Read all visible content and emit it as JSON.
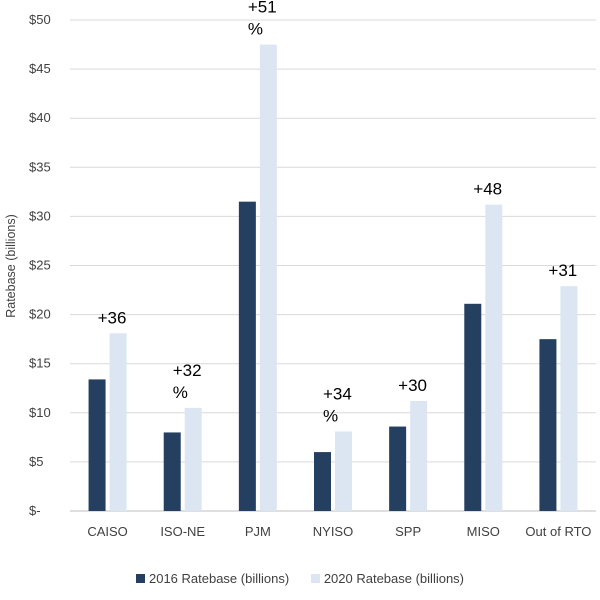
{
  "chart_data": {
    "type": "bar",
    "title": "",
    "xlabel": "",
    "ylabel": "Ratebase (billions)",
    "ylim": [
      0,
      50
    ],
    "yticks": [
      0,
      5,
      10,
      15,
      20,
      25,
      30,
      35,
      40,
      45,
      50
    ],
    "ytick_labels": [
      "$-",
      "$5",
      "$10",
      "$15",
      "$20",
      "$25",
      "$30",
      "$35",
      "$40",
      "$45",
      "$50"
    ],
    "grid": true,
    "legend_position": "bottom",
    "categories": [
      "CAISO",
      "ISO-NE",
      "PJM",
      "NYISO",
      "SPP",
      "MISO",
      "Out of RTO"
    ],
    "series": [
      {
        "name": "2016 Ratebase (billions)",
        "color": "#243F60",
        "values": [
          13.4,
          8.0,
          31.5,
          6.0,
          8.6,
          21.1,
          17.5
        ]
      },
      {
        "name": "2020 Ratebase (billions)",
        "color": "#DCE6F2",
        "values": [
          18.1,
          10.5,
          47.5,
          8.1,
          11.2,
          31.2,
          22.9
        ]
      }
    ],
    "annotations": [
      {
        "category": "CAISO",
        "lines": [
          "+36"
        ]
      },
      {
        "category": "ISO-NE",
        "lines": [
          "+32",
          "%"
        ]
      },
      {
        "category": "PJM",
        "lines": [
          "+51",
          "%"
        ]
      },
      {
        "category": "NYISO",
        "lines": [
          "+34",
          "%"
        ]
      },
      {
        "category": "SPP",
        "lines": [
          "+30"
        ]
      },
      {
        "category": "MISO",
        "lines": [
          "+48"
        ]
      },
      {
        "category": "Out of RTO",
        "lines": [
          "+31"
        ]
      }
    ]
  }
}
